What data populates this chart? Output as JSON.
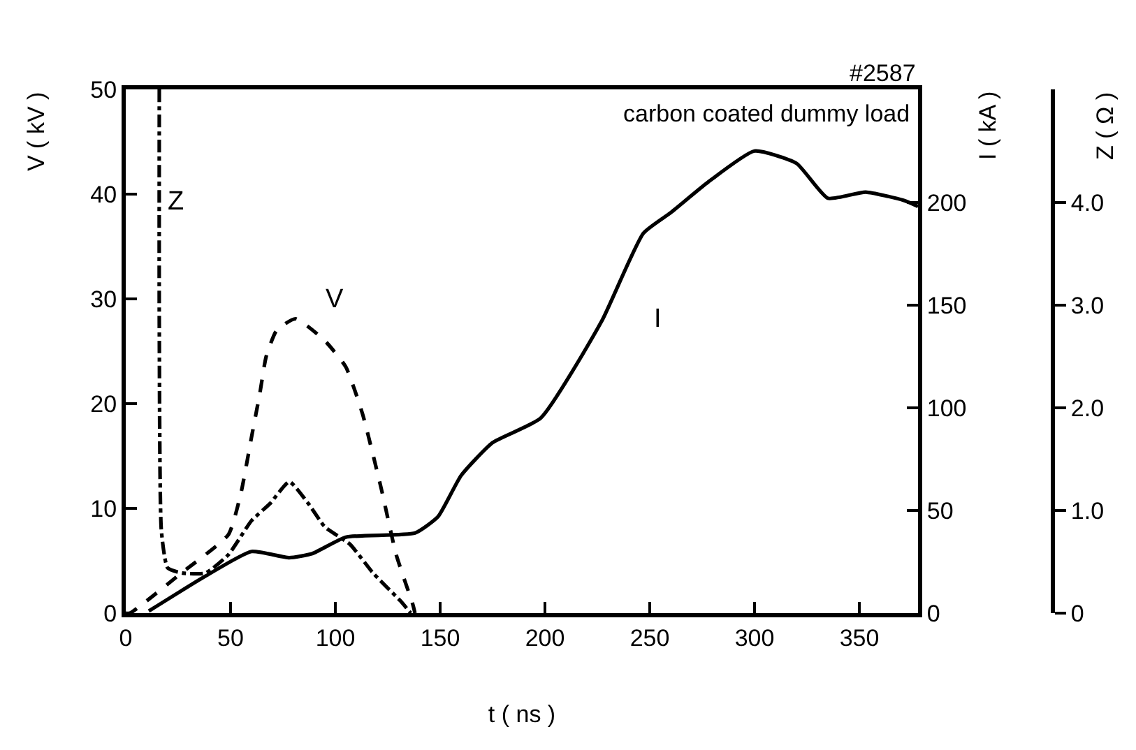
{
  "chart_data": {
    "type": "line",
    "xlabel": "t ( ns )",
    "ylabel": "V ( kV )",
    "y2label": "I ( kA )",
    "y3label": "Z ( Ω )",
    "annotations": [
      "#2587",
      "carbon coated dummy load"
    ],
    "xlim": [
      0,
      378
    ],
    "xticks": [
      0,
      50,
      100,
      150,
      200,
      250,
      300,
      350
    ],
    "ylim": [
      0,
      50
    ],
    "yticks": [
      0,
      10,
      20,
      30,
      40,
      50
    ],
    "y2lim": [
      0,
      255
    ],
    "y2ticks": [
      0,
      50,
      100,
      150,
      200
    ],
    "y3lim": [
      0,
      5.1
    ],
    "y3ticks": [
      0,
      {
        "value": 1,
        "label": "1.0"
      },
      {
        "value": 2,
        "label": "2.0"
      },
      {
        "value": 3,
        "label": "3.0"
      },
      {
        "value": 4,
        "label": "4.0"
      }
    ],
    "grid": false,
    "legend": false,
    "marker": "none",
    "series": [
      {
        "name": "V",
        "color": "#000000",
        "line_style": "dashed",
        "x": [
          0,
          2,
          27,
          49,
          55,
          60,
          64,
          67,
          72,
          81,
          95,
          105,
          113,
          122,
          129,
          137,
          138
        ],
        "values": [
          0,
          0,
          3.9,
          7.5,
          11.5,
          16.8,
          21,
          24.5,
          27,
          28.1,
          26,
          23.5,
          19,
          11.8,
          5.6,
          0.8,
          0
        ]
      },
      {
        "name": "I",
        "color": "#000000",
        "line_style": "solid",
        "axis": "y2",
        "x": [
          11,
          38,
          60,
          78,
          89,
          105,
          138,
          149,
          160,
          175,
          198,
          227,
          247,
          260,
          278,
          300,
          320,
          335,
          353,
          371,
          378
        ],
        "values": [
          1,
          18,
          30,
          27,
          29,
          37,
          39,
          47,
          67,
          83,
          95,
          142,
          185,
          195,
          210,
          225,
          219,
          202,
          205,
          201,
          198
        ]
      },
      {
        "name": "Z",
        "color": "#000000",
        "line_style": "dashdot",
        "axis": "y3",
        "x": [
          16,
          16,
          17,
          20,
          27,
          38,
          49,
          60,
          69,
          78,
          87,
          95,
          107,
          118,
          131,
          136
        ],
        "values": [
          5.1,
          2.8,
          0.8,
          0.44,
          0.39,
          0.39,
          0.57,
          0.9,
          1.07,
          1.28,
          1.07,
          0.84,
          0.67,
          0.39,
          0.12,
          0
        ]
      }
    ]
  }
}
